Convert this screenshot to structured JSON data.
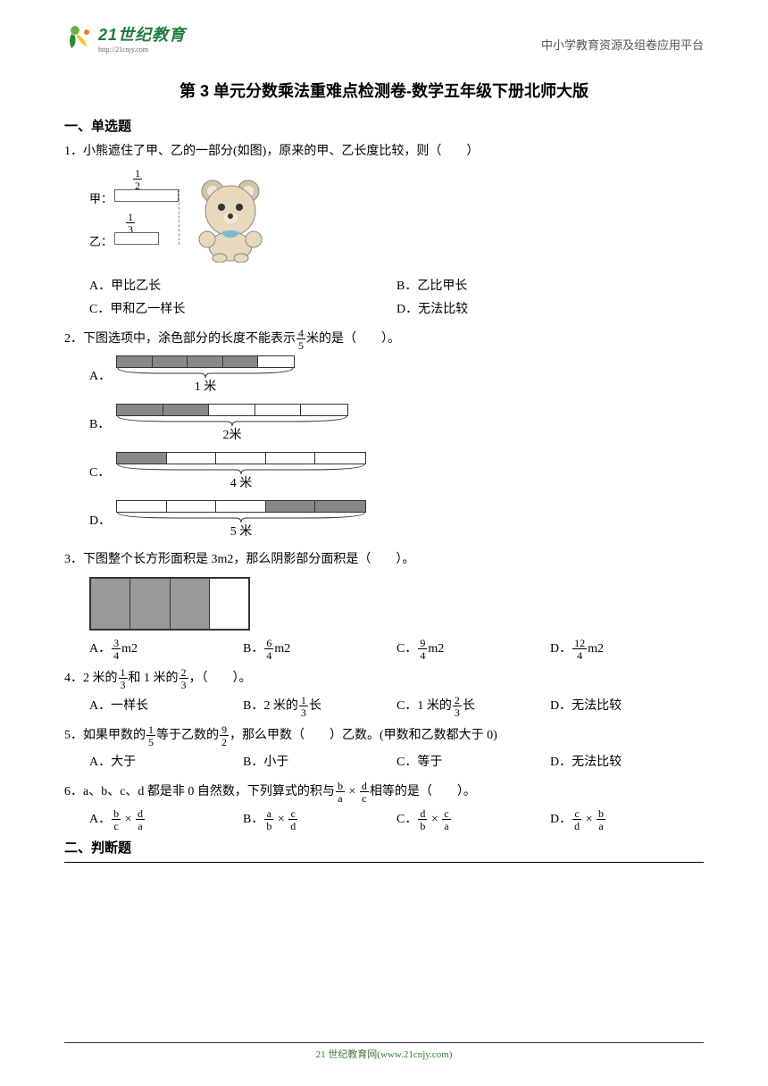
{
  "header": {
    "logo_main": "21世纪教育",
    "logo_sub": "http://21cnjy.com",
    "right_text": "中小学教育资源及组卷应用平台"
  },
  "title": "第 3 单元分数乘法重难点检测卷-数学五年级下册北师大版",
  "section1": "一、单选题",
  "section2": "二、判断题",
  "q1": {
    "text": "1．小熊遮住了甲、乙的一部分(如图)，原来的甲、乙长度比较，则（　　）",
    "jia": "甲：",
    "yi": "乙：",
    "frac1_num": "1",
    "frac1_den": "2",
    "frac2_num": "1",
    "frac2_den": "3",
    "opts": {
      "a": "A．甲比乙长",
      "b": "B．乙比甲长",
      "c": "C．甲和乙一样长",
      "d": "D．无法比较"
    }
  },
  "q2": {
    "text_pre": "2．下图选项中，涂色部分的长度不能表示",
    "frac_num": "4",
    "frac_den": "5",
    "text_post": "米的是（　　）。",
    "labels": {
      "a": "A．",
      "b": "B．",
      "c": "C．",
      "d": "D．"
    },
    "lengths": {
      "a": "1 米",
      "b": "2米",
      "c": "4 米",
      "d": "5 米"
    },
    "bars": {
      "a": {
        "total_width": 200,
        "segments": 5,
        "shaded": [
          0,
          1,
          2,
          3
        ],
        "seg_width": 40
      },
      "b": {
        "total_width": 260,
        "segments": 5,
        "shaded": [
          0,
          1
        ],
        "seg_width": 52
      },
      "c": {
        "total_width": 280,
        "segments": 5,
        "shaded": [
          0
        ],
        "seg_width": 56
      },
      "d": {
        "total_width": 280,
        "segments": 5,
        "shaded": [
          3,
          4
        ],
        "seg_width": 56
      }
    }
  },
  "q3": {
    "text": "3．下图整个长方形面积是 3m2，那么阴影部分面积是（　　）。",
    "shaded_cells": [
      0,
      1,
      2
    ],
    "total_cells": 4,
    "opts": {
      "a_pre": "A．",
      "a_num": "3",
      "a_den": "4",
      "a_post": "m2",
      "b_pre": "B．",
      "b_num": "6",
      "b_den": "4",
      "b_post": "m2",
      "c_pre": "C．",
      "c_num": "9",
      "c_den": "4",
      "c_post": "m2",
      "d_pre": "D．",
      "d_num": "12",
      "d_den": "4",
      "d_post": "m2"
    }
  },
  "q4": {
    "text_pre": "4．2 米的",
    "f1_num": "1",
    "f1_den": "3",
    "text_mid": "和 1 米的",
    "f2_num": "2",
    "f2_den": "3",
    "text_post": "，（　　）。",
    "opts": {
      "a": "A．一样长",
      "b_pre": "B．2 米的",
      "b_num": "1",
      "b_den": "3",
      "b_post": "长",
      "c_pre": "C．1 米的",
      "c_num": "2",
      "c_den": "3",
      "c_post": "长",
      "d": "D．无法比较"
    }
  },
  "q5": {
    "text_pre": "5．如果甲数的",
    "f1_num": "1",
    "f1_den": "5",
    "text_mid": "等于乙数的",
    "f2_num": "9",
    "f2_den": "2",
    "text_post": "，那么甲数（　　）乙数。(甲数和乙数都大于 0)",
    "opts": {
      "a": "A．大于",
      "b": "B．小于",
      "c": "C．等于",
      "d": "D．无法比较"
    }
  },
  "q6": {
    "text_pre": "6．a、b、c、d 都是非 0 自然数，下列算式的积与",
    "f1_num": "b",
    "f1_den": "a",
    "mult": " × ",
    "f2_num": "d",
    "f2_den": "c",
    "text_post": "相等的是（　　）。",
    "opts": {
      "a_pre": "A．",
      "a1n": "b",
      "a1d": "c",
      "a2n": "d",
      "a2d": "a",
      "b_pre": "B．",
      "b1n": "a",
      "b1d": "b",
      "b2n": "c",
      "b2d": "d",
      "c_pre": "C．",
      "c1n": "d",
      "c1d": "b",
      "c2n": "c",
      "c2d": "a",
      "d_pre": "D．",
      "d1n": "c",
      "d1d": "d",
      "d2n": "b",
      "d2d": "a"
    }
  },
  "footer": {
    "text": "21 世纪教育网(www.21cnjy.com)"
  },
  "colors": {
    "logo_green": "#1e7b3e",
    "text_gray": "#555555",
    "shaded_gray": "#888888",
    "border": "#333333"
  }
}
